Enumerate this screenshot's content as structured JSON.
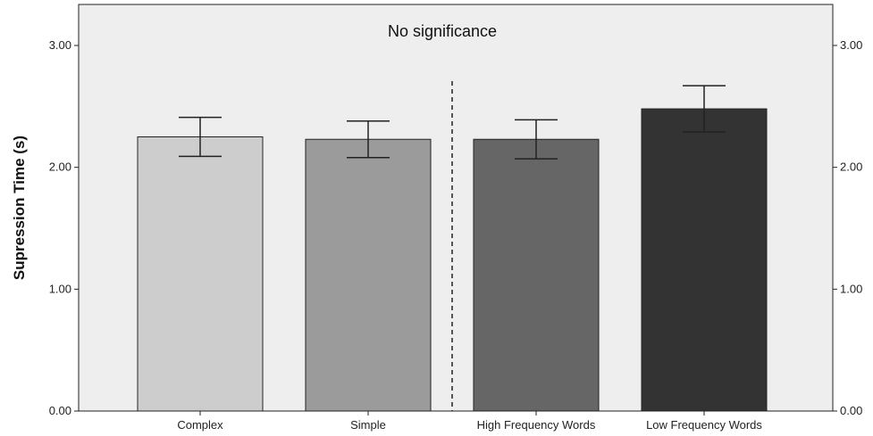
{
  "chart_data": {
    "type": "bar",
    "categories": [
      "Complex",
      "Simple",
      "High Frequency Words",
      "Low  Frequency Words"
    ],
    "values": [
      2.25,
      2.23,
      2.23,
      2.48
    ],
    "error_bars": {
      "lower": [
        2.09,
        2.08,
        2.07,
        2.29
      ],
      "upper": [
        2.41,
        2.38,
        2.39,
        2.67
      ]
    },
    "bar_colors": [
      "#cdcdcd",
      "#9b9b9b",
      "#666666",
      "#333333"
    ],
    "plot_background": "#eeeeee",
    "title": "",
    "xlabel": "",
    "ylabel": "Supression Time (s)",
    "ylim": [
      0,
      3.0
    ],
    "yticks": [
      "0.00",
      "1.00",
      "2.00",
      "3.00"
    ],
    "right_axis_ticks": [
      "0.00",
      "1.00",
      "2.00",
      "3.00"
    ],
    "annotation": "No significance",
    "divider": "dashed vertical line between Simple and High Frequency Words",
    "grid": false,
    "legend": "none"
  }
}
